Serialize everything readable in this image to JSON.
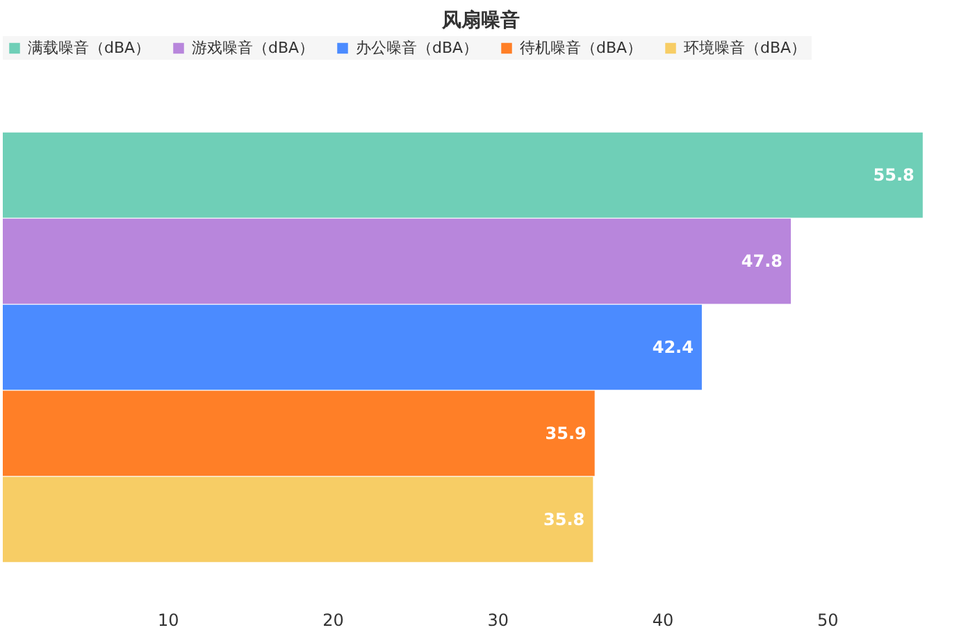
{
  "chart_data": {
    "type": "bar",
    "title": "风扇噪音",
    "orientation": "horizontal",
    "categories": [
      null
    ],
    "series": [
      {
        "name": "满载噪音（dBA）",
        "color": "#6fcfb7",
        "values": [
          55.8
        ]
      },
      {
        "name": "游戏噪音（dBA）",
        "color": "#b886dc",
        "values": [
          47.8
        ]
      },
      {
        "name": "办公噪音（dBA）",
        "color": "#4b8bff",
        "values": [
          42.4
        ]
      },
      {
        "name": "待机噪音（dBA）",
        "color": "#ff7f27",
        "values": [
          35.9
        ]
      },
      {
        "name": "环境噪音（dBA）",
        "color": "#f7cd65",
        "values": [
          35.8
        ]
      }
    ],
    "xlim": [
      0,
      58
    ],
    "xticks": [
      10,
      20,
      30,
      40,
      50
    ],
    "data_labels": true,
    "legend": "top"
  }
}
